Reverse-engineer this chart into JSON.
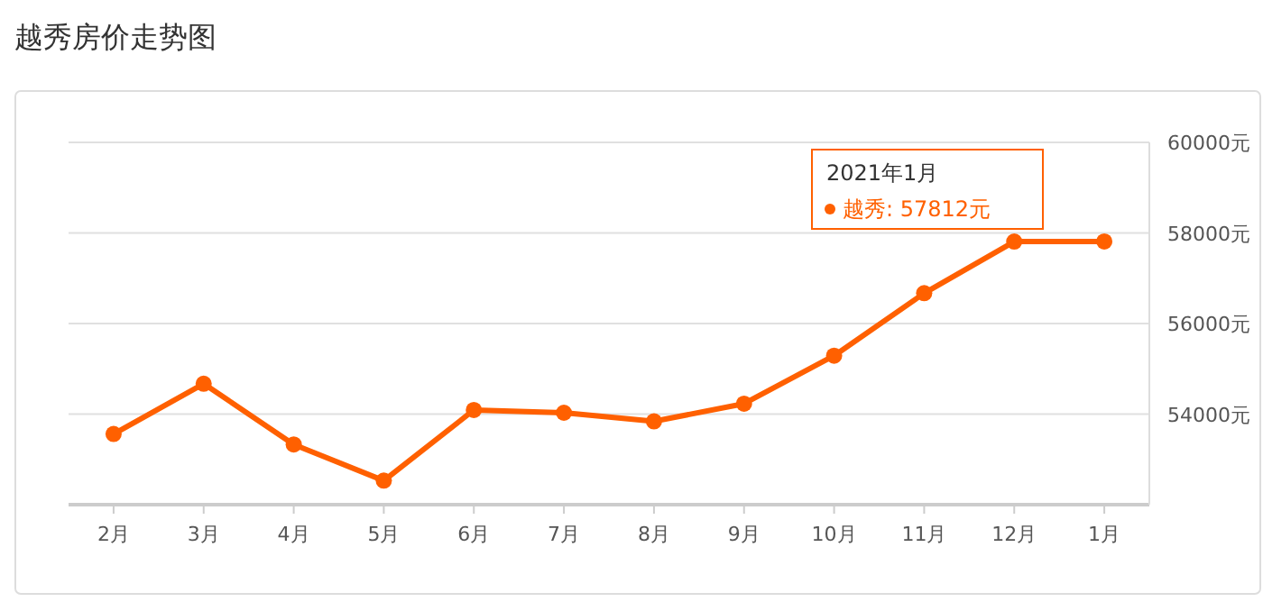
{
  "chart_data": {
    "type": "line",
    "title": "越秀房价走势图",
    "categories": [
      "2月",
      "3月",
      "4月",
      "5月",
      "6月",
      "7月",
      "8月",
      "9月",
      "10月",
      "11月",
      "12月",
      "1月"
    ],
    "series": [
      {
        "color": "#ff6000",
        "values": [
          53560,
          54670,
          53330,
          52530,
          54090,
          54030,
          53840,
          54230,
          55290,
          56670,
          57810,
          57812
        ]
      }
    ],
    "ylim": [
      52000,
      60000
    ],
    "yticks": [
      {
        "value": 54000,
        "label": "54000元"
      },
      {
        "value": 56000,
        "label": "56000元"
      },
      {
        "value": 58000,
        "label": "58000元"
      },
      {
        "value": 60000,
        "label": "60000元"
      }
    ],
    "grid": "y",
    "marker": "circle",
    "line_style": "solid",
    "annotations": [
      "2021年1月",
      "越秀:  57812元"
    ]
  }
}
